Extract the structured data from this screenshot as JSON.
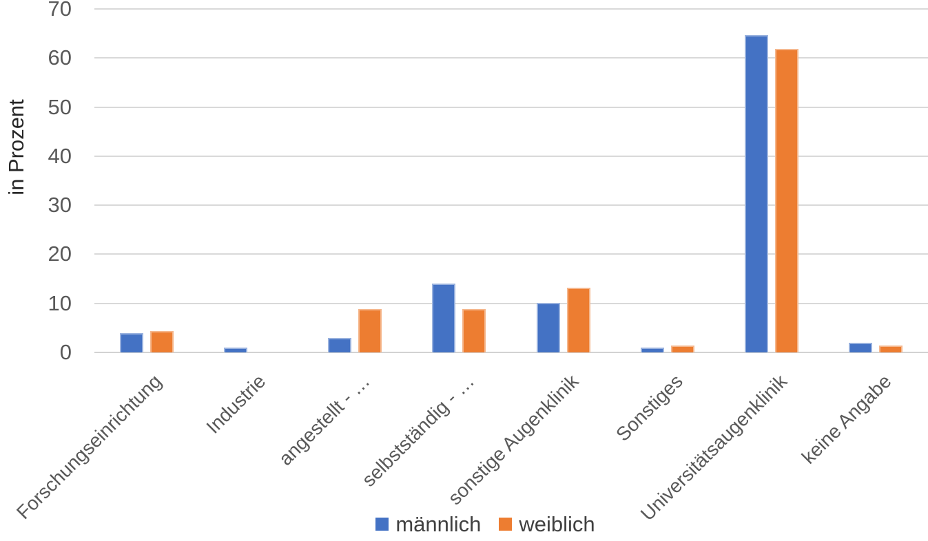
{
  "chart_data": {
    "type": "bar",
    "title": "",
    "xlabel": "",
    "ylabel": "in Prozent",
    "ylim": [
      0,
      70
    ],
    "yticks": [
      0,
      10,
      20,
      30,
      40,
      50,
      60,
      70
    ],
    "grid": true,
    "legend_position": "bottom-center",
    "categories": [
      "Forschungseinrichtung",
      "Industrie",
      "angestellt - …",
      "selbstständig - …",
      "sonstige Augenklinik",
      "Sonstiges",
      "Universitätsaugenklinik",
      "keine Angabe"
    ],
    "series": [
      {
        "name": "männlich",
        "color": "#4472C4",
        "values": [
          4.0,
          1.0,
          2.9,
          14.1,
          10.1,
          1.0,
          64.7,
          2.0
        ]
      },
      {
        "name": "weiblich",
        "color": "#ED7D31",
        "values": [
          4.4,
          0,
          8.8,
          8.8,
          13.2,
          1.4,
          61.9,
          1.4
        ]
      }
    ],
    "colors": {
      "gridline": "#D9D9D9",
      "tick_text": "#595959",
      "category_text": "#595959",
      "legend_text": "#404040",
      "axis_title_text": "#262626"
    }
  }
}
